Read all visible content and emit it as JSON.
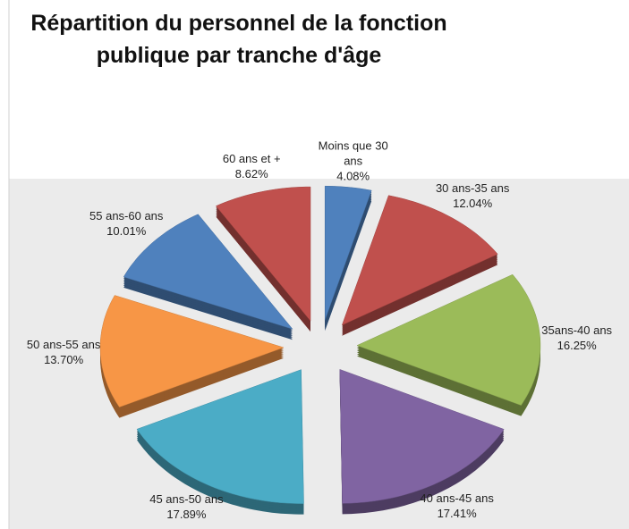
{
  "chart_data": {
    "type": "pie3d",
    "title": "Répartition du personnel de la fonction publique par tranche d'âge",
    "categories": [
      "Moins que 30 ans",
      "30 ans-35 ans",
      "35ans-40 ans",
      "40 ans-45 ans",
      "45 ans-50 ans",
      "50 ans-55 ans",
      "55 ans-60 ans",
      "60 ans et +"
    ],
    "values": [
      4.08,
      12.04,
      16.25,
      17.41,
      17.89,
      13.7,
      10.01,
      8.62
    ],
    "value_labels": [
      "4.08%",
      "12.04%",
      "16.25%",
      "17.41%",
      "17.89%",
      "13.70%",
      "10.01%",
      "8.62%"
    ],
    "colors": [
      "#4f81bd",
      "#c0504d",
      "#9bbb59",
      "#8064a2",
      "#4bacc6",
      "#f79646",
      "#4f81bd",
      "#c0504d"
    ]
  }
}
